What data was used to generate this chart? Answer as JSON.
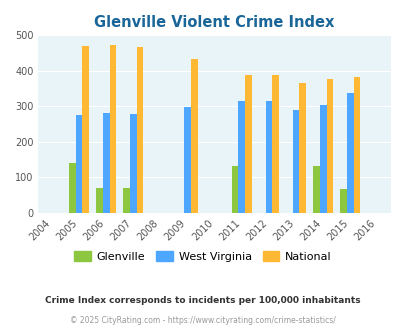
{
  "title": "Glenville Violent Crime Index",
  "subtitle": "Crime Index corresponds to incidents per 100,000 inhabitants",
  "footer": "© 2025 CityRating.com - https://www.cityrating.com/crime-statistics/",
  "years": [
    2005,
    2006,
    2007,
    2009,
    2011,
    2012,
    2013,
    2014,
    2015
  ],
  "glenville": [
    140,
    70,
    70,
    0,
    132,
    0,
    0,
    132,
    68
  ],
  "west_virginia": [
    275,
    282,
    279,
    298,
    315,
    315,
    291,
    303,
    337
  ],
  "national": [
    469,
    473,
    467,
    432,
    387,
    387,
    367,
    377,
    383
  ],
  "bar_width": 0.25,
  "colors": {
    "glenville": "#8dc63f",
    "west_virginia": "#4da6ff",
    "national": "#ffb833"
  },
  "bg_color": "#e8f4f8",
  "title_color": "#1a6699",
  "subtitle_color": "#333333",
  "footer_color": "#999999",
  "ylim": [
    0,
    500
  ],
  "yticks": [
    0,
    100,
    200,
    300,
    400,
    500
  ],
  "xtick_range": [
    2004,
    2005,
    2006,
    2007,
    2008,
    2009,
    2010,
    2011,
    2012,
    2013,
    2014,
    2015,
    2016
  ],
  "legend_labels": [
    "Glenville",
    "West Virginia",
    "National"
  ]
}
